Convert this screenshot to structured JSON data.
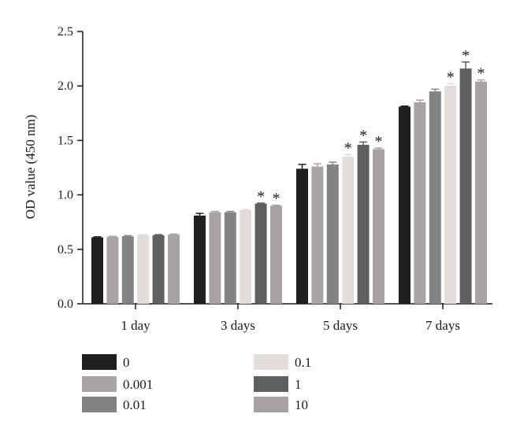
{
  "chart_data": {
    "type": "bar",
    "ylabel": "OD value (450 nm)",
    "ylim": [
      0,
      2.5
    ],
    "yticks": [
      "0.0",
      "0.5",
      "1.0",
      "1.5",
      "2.0",
      "2.5"
    ],
    "categories": [
      "1 day",
      "3 days",
      "5 days",
      "7 days"
    ],
    "series": [
      {
        "name": "0",
        "color": "#1e201e",
        "values": [
          0.61,
          0.81,
          1.24,
          1.81
        ],
        "errors": [
          0.005,
          0.02,
          0.04,
          0.005
        ],
        "significant": [
          false,
          false,
          false,
          false
        ]
      },
      {
        "name": "0.001",
        "color": "#a8a4a6",
        "values": [
          0.615,
          0.84,
          1.26,
          1.85
        ],
        "errors": [
          0.005,
          0.008,
          0.025,
          0.02
        ],
        "significant": [
          false,
          false,
          false,
          false
        ]
      },
      {
        "name": "0.01",
        "color": "#858382",
        "values": [
          0.62,
          0.84,
          1.28,
          1.95
        ],
        "errors": [
          0.005,
          0.008,
          0.02,
          0.02
        ],
        "significant": [
          false,
          false,
          false,
          false
        ]
      },
      {
        "name": "0.1",
        "color": "#e3ddd9",
        "values": [
          0.63,
          0.86,
          1.35,
          2.0
        ],
        "errors": [
          0.005,
          0.005,
          0.02,
          0.02
        ],
        "significant": [
          false,
          false,
          true,
          true
        ]
      },
      {
        "name": "1",
        "color": "#5f5f5f",
        "values": [
          0.63,
          0.92,
          1.46,
          2.16
        ],
        "errors": [
          0.005,
          0.005,
          0.025,
          0.06
        ],
        "significant": [
          false,
          true,
          true,
          true
        ]
      },
      {
        "name": "10",
        "color": "#a7a2a4",
        "values": [
          0.635,
          0.9,
          1.42,
          2.04
        ],
        "errors": [
          0.005,
          0.005,
          0.01,
          0.015
        ],
        "significant": [
          false,
          true,
          true,
          true
        ]
      }
    ],
    "significance_marker": "*",
    "grid": false,
    "legend_position": "bottom"
  }
}
